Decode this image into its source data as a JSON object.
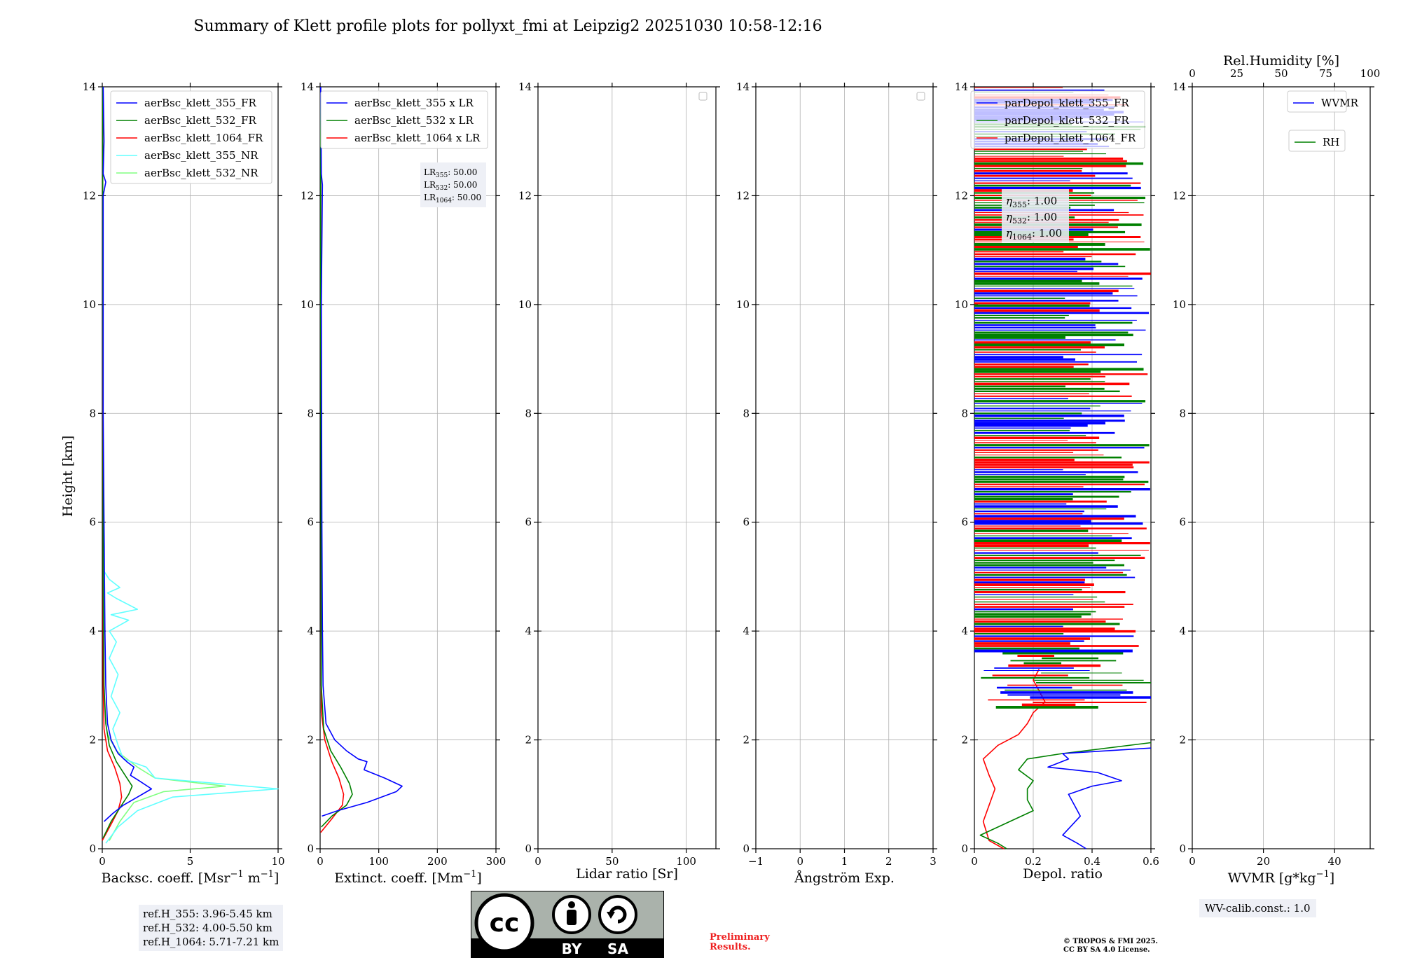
{
  "title": "Summary of Klett profile plots for pollyxt_fmi at Leipzig2 20251030 10:58-12:16",
  "ylabel": "Height [km]",
  "colors": {
    "blue": "#0000ff",
    "green": "#008000",
    "red": "#ff0000",
    "cyan": "#60ffff",
    "lightgreen": "#80ff80",
    "rhgreen": "#008000"
  },
  "panel_labels": {
    "bsc_xlabel": "Backsc. coeff. [Msr",
    "bsc_xlabel_unit1": "sr",
    "ext_xlabel": "Extinct. coeff. [Mm",
    "lr_xlabel": "Lidar ratio [Sr]",
    "ang_xlabel": "Ångström Exp.",
    "depol_xlabel": "Depol. ratio",
    "wv_xlabel": "WVMR [g*kg",
    "rh_top_label": "Rel.Humidity [%]"
  },
  "lr_box": {
    "lr355": "50.00",
    "lr532": "50.00",
    "lr1064": "50.00"
  },
  "eta_box": {
    "eta355": "1.00",
    "eta532": "1.00",
    "eta1064": "1.00"
  },
  "ref_heights": {
    "ref355": "ref.H_355: 3.96-5.45 km",
    "ref532": "ref.H_532: 4.00-5.50 km",
    "ref1064": "ref.H_1064: 5.71-7.21 km"
  },
  "wv_calib": "WV-calib.const.: 1.0",
  "preliminary": [
    "Preliminary",
    "Results."
  ],
  "copyright": [
    "© TROPOS & FMI 2025.",
    "CC BY SA 4.0 License."
  ],
  "license_icons": {
    "cc": "cc",
    "by": "BY",
    "sa": "SA"
  },
  "chart_data": [
    {
      "type": "line",
      "panel": "backscatter",
      "ylim": [
        0,
        14
      ],
      "xlim": [
        0,
        10
      ],
      "xticks": [
        0,
        5,
        10
      ],
      "yticks": [
        0,
        2,
        4,
        6,
        8,
        10,
        12,
        14
      ],
      "legend": [
        "aerBsc_klett_355_FR",
        "aerBsc_klett_532_FR",
        "aerBsc_klett_1064_FR",
        "aerBsc_klett_355_NR",
        "aerBsc_klett_532_NR"
      ],
      "series": [
        {
          "name": "aerBsc_klett_355_FR",
          "color": "blue",
          "points": [
            [
              0.1,
              0.5
            ],
            [
              0.6,
              0.65
            ],
            [
              1.2,
              0.8
            ],
            [
              2.0,
              0.95
            ],
            [
              2.8,
              1.1
            ],
            [
              2.1,
              1.25
            ],
            [
              1.6,
              1.35
            ],
            [
              1.8,
              1.5
            ],
            [
              1.4,
              1.6
            ],
            [
              0.9,
              1.75
            ],
            [
              0.5,
              2.0
            ],
            [
              0.3,
              2.3
            ],
            [
              0.2,
              3.0
            ],
            [
              0.15,
              4.0
            ],
            [
              0.1,
              6.0
            ],
            [
              0.05,
              8.0
            ],
            [
              0.05,
              12.0
            ],
            [
              0.2,
              12.25
            ],
            [
              0.05,
              12.4
            ],
            [
              0.1,
              13.0
            ],
            [
              0.05,
              14.0
            ]
          ]
        },
        {
          "name": "aerBsc_klett_532_FR",
          "color": "green",
          "points": [
            [
              0.05,
              0.2
            ],
            [
              0.5,
              0.5
            ],
            [
              1.1,
              0.8
            ],
            [
              1.5,
              1.0
            ],
            [
              1.7,
              1.15
            ],
            [
              1.3,
              1.35
            ],
            [
              0.8,
              1.6
            ],
            [
              0.4,
              1.9
            ],
            [
              0.2,
              2.3
            ],
            [
              0.1,
              3.0
            ],
            [
              0.05,
              5.0
            ],
            [
              0.02,
              14.0
            ]
          ]
        },
        {
          "name": "aerBsc_klett_1064_FR",
          "color": "red",
          "points": [
            [
              0.0,
              0.15
            ],
            [
              0.5,
              0.45
            ],
            [
              0.9,
              0.7
            ],
            [
              1.1,
              0.95
            ],
            [
              1.0,
              1.2
            ],
            [
              0.7,
              1.5
            ],
            [
              0.3,
              1.8
            ],
            [
              0.1,
              2.2
            ],
            [
              0.05,
              3.0
            ],
            [
              0.02,
              14.0
            ]
          ]
        },
        {
          "name": "aerBsc_klett_355_NR",
          "color": "cyan",
          "points": [
            [
              0.2,
              0.1
            ],
            [
              0.9,
              0.4
            ],
            [
              2.0,
              0.7
            ],
            [
              4.0,
              0.95
            ],
            [
              10.0,
              1.1
            ],
            [
              6.5,
              1.2
            ],
            [
              3.0,
              1.3
            ],
            [
              2.5,
              1.5
            ],
            [
              1.2,
              1.65
            ],
            [
              0.9,
              1.9
            ],
            [
              0.6,
              2.2
            ],
            [
              1.0,
              2.5
            ],
            [
              0.5,
              2.8
            ],
            [
              0.9,
              3.2
            ],
            [
              0.4,
              3.5
            ],
            [
              0.8,
              3.8
            ],
            [
              0.4,
              4.0
            ],
            [
              1.5,
              4.2
            ],
            [
              0.5,
              4.3
            ],
            [
              2.0,
              4.4
            ],
            [
              0.8,
              4.6
            ],
            [
              0.3,
              4.7
            ],
            [
              1.0,
              4.8
            ],
            [
              0.4,
              4.95
            ],
            [
              0.1,
              5.1
            ]
          ]
        },
        {
          "name": "aerBsc_klett_532_NR",
          "color": "lightgreen",
          "points": [
            [
              0.4,
              0.15
            ],
            [
              1.0,
              0.5
            ],
            [
              1.8,
              0.85
            ],
            [
              3.5,
              1.05
            ],
            [
              7.0,
              1.15
            ],
            [
              3.0,
              1.3
            ],
            [
              2.0,
              1.5
            ],
            [
              0.8,
              1.8
            ],
            [
              0.3,
              2.1
            ]
          ]
        }
      ]
    },
    {
      "type": "line",
      "panel": "extinction",
      "ylim": [
        0,
        14
      ],
      "xlim": [
        0,
        300
      ],
      "xticks": [
        0,
        100,
        200,
        300
      ],
      "legend": [
        "aerBsc_klett_355 x LR",
        "aerBsc_klett_532 x LR",
        "aerBsc_klett_1064 x LR"
      ],
      "series": [
        {
          "name": "aerBsc_klett_355 x LR",
          "color": "blue",
          "points": [
            [
              3,
              0.6
            ],
            [
              30,
              0.7
            ],
            [
              80,
              0.85
            ],
            [
              130,
              1.05
            ],
            [
              140,
              1.15
            ],
            [
              110,
              1.3
            ],
            [
              75,
              1.45
            ],
            [
              80,
              1.6
            ],
            [
              65,
              1.65
            ],
            [
              45,
              1.8
            ],
            [
              25,
              2.0
            ],
            [
              10,
              2.3
            ],
            [
              5,
              3.0
            ],
            [
              4,
              4.0
            ],
            [
              3,
              6.0
            ],
            [
              2,
              10.0
            ],
            [
              4,
              12.2
            ],
            [
              2,
              12.4
            ],
            [
              1,
              14.0
            ]
          ]
        },
        {
          "name": "aerBsc_klett_532 x LR",
          "color": "green",
          "points": [
            [
              2,
              0.4
            ],
            [
              20,
              0.6
            ],
            [
              45,
              0.8
            ],
            [
              55,
              1.0
            ],
            [
              50,
              1.2
            ],
            [
              35,
              1.5
            ],
            [
              18,
              1.8
            ],
            [
              6,
              2.2
            ],
            [
              2,
              3.0
            ],
            [
              1,
              10.0
            ],
            [
              1,
              14.0
            ]
          ]
        },
        {
          "name": "aerBsc_klett_1064 x LR",
          "color": "red",
          "points": [
            [
              1,
              0.3
            ],
            [
              20,
              0.55
            ],
            [
              38,
              0.8
            ],
            [
              40,
              1.0
            ],
            [
              32,
              1.3
            ],
            [
              20,
              1.6
            ],
            [
              8,
              2.0
            ],
            [
              2,
              2.5
            ],
            [
              1,
              14.0
            ]
          ]
        }
      ]
    },
    {
      "type": "line",
      "panel": "lidar_ratio",
      "ylim": [
        0,
        14
      ],
      "xlim": [
        0,
        120
      ],
      "xticks": [
        0,
        50,
        100
      ],
      "series": []
    },
    {
      "type": "line",
      "panel": "angstrom",
      "ylim": [
        0,
        14
      ],
      "xlim": [
        -1,
        3
      ],
      "xticks": [
        -1,
        0,
        1,
        2,
        3
      ],
      "series": []
    },
    {
      "type": "line",
      "panel": "depol",
      "ylim": [
        0,
        14
      ],
      "xlim": [
        0,
        0.6
      ],
      "xticks": [
        0.0,
        0.2,
        0.4,
        0.6
      ],
      "legend": [
        "parDepol_klett_355_FR",
        "parDepol_klett_532_FR",
        "parDepol_klett_1064_FR"
      ],
      "noise_range_km": [
        2.6,
        14
      ],
      "series": [
        {
          "name": "parDepol_klett_355_FR",
          "color": "blue",
          "points": [
            [
              0.38,
              0.0
            ],
            [
              0.35,
              0.1
            ],
            [
              0.3,
              0.25
            ],
            [
              0.36,
              0.6
            ],
            [
              0.34,
              0.8
            ],
            [
              0.32,
              1.0
            ],
            [
              0.4,
              1.15
            ],
            [
              0.5,
              1.25
            ],
            [
              0.42,
              1.4
            ],
            [
              0.25,
              1.5
            ],
            [
              0.32,
              1.65
            ],
            [
              0.3,
              1.75
            ],
            [
              0.6,
              1.85
            ]
          ]
        },
        {
          "name": "parDepol_klett_532_FR",
          "color": "green",
          "points": [
            [
              0.11,
              0.0
            ],
            [
              0.08,
              0.1
            ],
            [
              0.02,
              0.25
            ],
            [
              0.2,
              0.7
            ],
            [
              0.18,
              0.9
            ],
            [
              0.18,
              1.1
            ],
            [
              0.2,
              1.25
            ],
            [
              0.15,
              1.45
            ],
            [
              0.18,
              1.65
            ],
            [
              0.3,
              1.75
            ],
            [
              0.6,
              1.95
            ]
          ]
        },
        {
          "name": "parDepol_klett_1064_FR",
          "color": "red",
          "points": [
            [
              0.1,
              0.0
            ],
            [
              0.05,
              0.15
            ],
            [
              0.03,
              0.5
            ],
            [
              0.05,
              0.8
            ],
            [
              0.07,
              1.1
            ],
            [
              0.05,
              1.35
            ],
            [
              0.03,
              1.65
            ],
            [
              0.08,
              1.9
            ],
            [
              0.15,
              2.1
            ],
            [
              0.18,
              2.3
            ],
            [
              0.2,
              2.5
            ],
            [
              0.24,
              2.7
            ],
            [
              0.22,
              2.9
            ],
            [
              0.2,
              3.1
            ],
            [
              0.22,
              3.3
            ]
          ]
        }
      ]
    },
    {
      "type": "line",
      "panel": "wvmr",
      "ylim": [
        0,
        14
      ],
      "xlim": [
        0,
        50
      ],
      "xticks": [
        0,
        20,
        40
      ],
      "top_xlim": [
        0,
        100
      ],
      "top_xticks": [
        0,
        25,
        50,
        75,
        100
      ],
      "legend": [
        "WVMR",
        "RH"
      ],
      "series": []
    }
  ]
}
